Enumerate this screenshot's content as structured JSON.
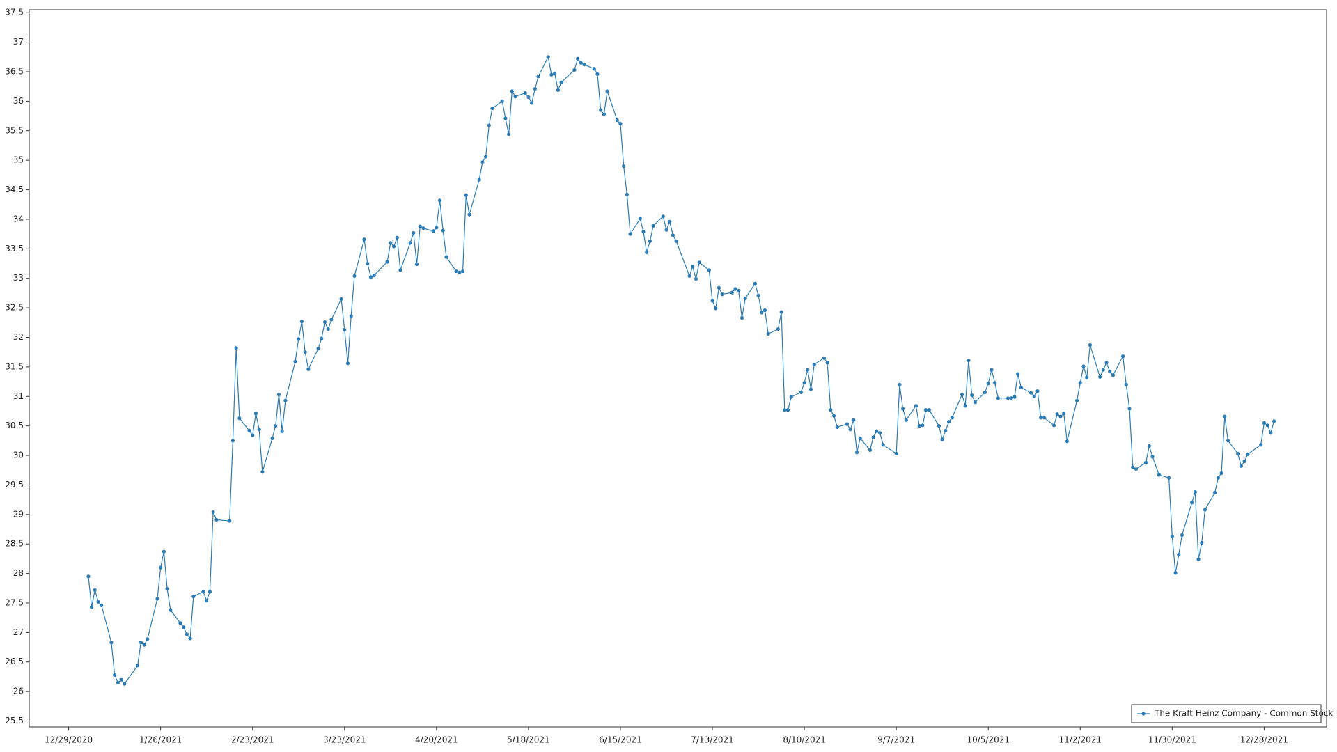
{
  "chart_data": {
    "type": "line",
    "legend": "bottom-right",
    "grid": true,
    "xlim": [
      "12/17/2020",
      "1/16/2022"
    ],
    "xticks": [
      "12/29/2020",
      "1/26/2021",
      "2/23/2021",
      "3/23/2021",
      "4/20/2021",
      "5/18/2021",
      "6/15/2021",
      "7/13/2021",
      "8/10/2021",
      "9/7/2021",
      "10/5/2021",
      "11/2/2021",
      "11/30/2021",
      "12/28/2021"
    ],
    "ylim": [
      25.4,
      37.55
    ],
    "yticks": [
      25.5,
      26,
      26.5,
      27,
      27.5,
      28,
      28.5,
      29,
      29.5,
      30,
      30.5,
      31,
      31.5,
      32,
      32.5,
      33,
      33.5,
      34,
      34.5,
      35,
      35.5,
      36,
      36.5,
      37,
      37.5
    ],
    "x": [
      "1/4/2021",
      "1/5/2021",
      "1/6/2021",
      "1/7/2021",
      "1/8/2021",
      "1/11/2021",
      "1/12/2021",
      "1/13/2021",
      "1/14/2021",
      "1/15/2021",
      "1/19/2021",
      "1/20/2021",
      "1/21/2021",
      "1/22/2021",
      "1/25/2021",
      "1/26/2021",
      "1/27/2021",
      "1/28/2021",
      "1/29/2021",
      "2/1/2021",
      "2/2/2021",
      "2/3/2021",
      "2/4/2021",
      "2/5/2021",
      "2/8/2021",
      "2/9/2021",
      "2/10/2021",
      "2/11/2021",
      "2/12/2021",
      "2/16/2021",
      "2/17/2021",
      "2/18/2021",
      "2/19/2021",
      "2/22/2021",
      "2/23/2021",
      "2/24/2021",
      "2/25/2021",
      "2/26/2021",
      "3/1/2021",
      "3/2/2021",
      "3/3/2021",
      "3/4/2021",
      "3/5/2021",
      "3/8/2021",
      "3/9/2021",
      "3/10/2021",
      "3/11/2021",
      "3/12/2021",
      "3/15/2021",
      "3/16/2021",
      "3/17/2021",
      "3/18/2021",
      "3/19/2021",
      "3/22/2021",
      "3/23/2021",
      "3/24/2021",
      "3/25/2021",
      "3/26/2021",
      "3/29/2021",
      "3/30/2021",
      "3/31/2021",
      "4/1/2021",
      "4/5/2021",
      "4/6/2021",
      "4/7/2021",
      "4/8/2021",
      "4/9/2021",
      "4/12/2021",
      "4/13/2021",
      "4/14/2021",
      "4/15/2021",
      "4/16/2021",
      "4/19/2021",
      "4/20/2021",
      "4/21/2021",
      "4/22/2021",
      "4/23/2021",
      "4/26/2021",
      "4/27/2021",
      "4/28/2021",
      "4/29/2021",
      "4/30/2021",
      "5/3/2021",
      "5/4/2021",
      "5/5/2021",
      "5/6/2021",
      "5/7/2021",
      "5/10/2021",
      "5/11/2021",
      "5/12/2021",
      "5/13/2021",
      "5/14/2021",
      "5/17/2021",
      "5/18/2021",
      "5/19/2021",
      "5/20/2021",
      "5/21/2021",
      "5/24/2021",
      "5/25/2021",
      "5/26/2021",
      "5/27/2021",
      "5/28/2021",
      "6/1/2021",
      "6/2/2021",
      "6/3/2021",
      "6/4/2021",
      "6/7/2021",
      "6/8/2021",
      "6/9/2021",
      "6/10/2021",
      "6/11/2021",
      "6/14/2021",
      "6/15/2021",
      "6/16/2021",
      "6/17/2021",
      "6/18/2021",
      "6/21/2021",
      "6/22/2021",
      "6/23/2021",
      "6/24/2021",
      "6/25/2021",
      "6/28/2021",
      "6/29/2021",
      "6/30/2021",
      "7/1/2021",
      "7/2/2021",
      "7/6/2021",
      "7/7/2021",
      "7/8/2021",
      "7/9/2021",
      "7/12/2021",
      "7/13/2021",
      "7/14/2021",
      "7/15/2021",
      "7/16/2021",
      "7/19/2021",
      "7/20/2021",
      "7/21/2021",
      "7/22/2021",
      "7/23/2021",
      "7/26/2021",
      "7/27/2021",
      "7/28/2021",
      "7/29/2021",
      "7/30/2021",
      "8/2/2021",
      "8/3/2021",
      "8/4/2021",
      "8/5/2021",
      "8/6/2021",
      "8/9/2021",
      "8/10/2021",
      "8/11/2021",
      "8/12/2021",
      "8/13/2021",
      "8/16/2021",
      "8/17/2021",
      "8/18/2021",
      "8/19/2021",
      "8/20/2021",
      "8/23/2021",
      "8/24/2021",
      "8/25/2021",
      "8/26/2021",
      "8/27/2021",
      "8/30/2021",
      "8/31/2021",
      "9/1/2021",
      "9/2/2021",
      "9/3/2021",
      "9/7/2021",
      "9/8/2021",
      "9/9/2021",
      "9/10/2021",
      "9/13/2021",
      "9/14/2021",
      "9/15/2021",
      "9/16/2021",
      "9/17/2021",
      "9/20/2021",
      "9/21/2021",
      "9/22/2021",
      "9/23/2021",
      "9/24/2021",
      "9/27/2021",
      "9/28/2021",
      "9/29/2021",
      "9/30/2021",
      "10/1/2021",
      "10/4/2021",
      "10/5/2021",
      "10/6/2021",
      "10/7/2021",
      "10/8/2021",
      "10/11/2021",
      "10/12/2021",
      "10/13/2021",
      "10/14/2021",
      "10/15/2021",
      "10/18/2021",
      "10/19/2021",
      "10/20/2021",
      "10/21/2021",
      "10/22/2021",
      "10/25/2021",
      "10/26/2021",
      "10/27/2021",
      "10/28/2021",
      "10/29/2021",
      "11/1/2021",
      "11/2/2021",
      "11/3/2021",
      "11/4/2021",
      "11/5/2021",
      "11/8/2021",
      "11/9/2021",
      "11/10/2021",
      "11/11/2021",
      "11/12/2021",
      "11/15/2021",
      "11/16/2021",
      "11/17/2021",
      "11/18/2021",
      "11/19/2021",
      "11/22/2021",
      "11/23/2021",
      "11/24/2021",
      "11/26/2021",
      "11/29/2021",
      "11/30/2021",
      "12/1/2021",
      "12/2/2021",
      "12/3/2021",
      "12/6/2021",
      "12/7/2021",
      "12/8/2021",
      "12/9/2021",
      "12/10/2021",
      "12/13/2021",
      "12/14/2021",
      "12/15/2021",
      "12/16/2021",
      "12/17/2021",
      "12/20/2021",
      "12/21/2021",
      "12/22/2021",
      "12/23/2021",
      "12/27/2021",
      "12/28/2021",
      "12/29/2021",
      "12/30/2021",
      "12/31/2021"
    ],
    "series": [
      {
        "name": "The Kraft Heinz Company - Common Stock",
        "color": "#2b7bb5",
        "values": [
          27.95,
          27.43,
          27.72,
          27.52,
          27.46,
          26.83,
          26.28,
          26.15,
          26.2,
          26.13,
          26.44,
          26.83,
          26.79,
          26.89,
          27.57,
          28.1,
          28.37,
          27.74,
          27.38,
          27.16,
          27.09,
          26.97,
          26.9,
          27.61,
          27.69,
          27.54,
          27.69,
          29.04,
          28.91,
          28.89,
          30.25,
          31.82,
          30.63,
          30.42,
          30.34,
          30.71,
          30.44,
          29.72,
          30.29,
          30.5,
          31.03,
          30.41,
          30.93,
          31.59,
          31.97,
          32.27,
          31.75,
          31.46,
          31.81,
          31.98,
          32.26,
          32.14,
          32.3,
          32.65,
          32.13,
          31.56,
          32.36,
          33.04,
          33.66,
          33.25,
          33.02,
          33.05,
          33.28,
          33.6,
          33.54,
          33.69,
          33.14,
          33.6,
          33.77,
          33.24,
          33.88,
          33.85,
          33.8,
          33.86,
          34.32,
          33.81,
          33.36,
          33.12,
          33.1,
          33.12,
          34.41,
          34.08,
          34.67,
          34.97,
          35.06,
          35.59,
          35.88,
          36.0,
          35.71,
          35.44,
          36.17,
          36.08,
          36.14,
          36.07,
          35.97,
          36.21,
          36.42,
          36.75,
          36.45,
          36.47,
          36.19,
          36.32,
          36.53,
          36.72,
          36.65,
          36.62,
          36.55,
          36.46,
          35.85,
          35.78,
          36.17,
          35.68,
          35.62,
          34.9,
          34.42,
          33.75,
          34.01,
          33.79,
          33.44,
          33.63,
          33.89,
          34.05,
          33.82,
          33.96,
          33.73,
          33.63,
          33.04,
          33.2,
          32.99,
          33.27,
          33.14,
          32.62,
          32.49,
          32.84,
          32.73,
          32.76,
          32.82,
          32.79,
          32.33,
          32.66,
          32.91,
          32.71,
          32.42,
          32.46,
          32.06,
          32.14,
          32.43,
          30.77,
          30.77,
          30.99,
          31.07,
          31.23,
          31.45,
          31.12,
          31.54,
          31.65,
          31.57,
          30.77,
          30.67,
          30.48,
          30.53,
          30.44,
          30.6,
          30.05,
          30.29,
          30.09,
          30.31,
          30.41,
          30.38,
          30.18,
          30.03,
          31.2,
          30.79,
          30.6,
          30.84,
          30.5,
          30.51,
          30.77,
          30.77,
          30.5,
          30.27,
          30.42,
          30.57,
          30.64,
          31.03,
          30.84,
          31.61,
          31.02,
          30.9,
          31.07,
          31.22,
          31.45,
          31.23,
          30.97,
          30.97,
          30.97,
          30.99,
          31.38,
          31.15,
          31.06,
          31.0,
          31.09,
          30.64,
          30.64,
          30.51,
          30.7,
          30.66,
          30.71,
          30.24,
          30.93,
          31.23,
          31.51,
          31.32,
          31.87,
          31.33,
          31.45,
          31.57,
          31.42,
          31.36,
          31.68,
          31.2,
          30.79,
          29.8,
          29.77,
          29.88,
          30.16,
          29.98,
          29.67,
          29.62,
          28.63,
          28.01,
          28.32,
          28.65,
          29.2,
          29.38,
          28.24,
          28.52,
          29.08,
          29.37,
          29.62,
          29.7,
          30.66,
          30.25,
          30.03,
          29.82,
          29.9,
          30.02,
          30.18,
          30.55,
          30.51,
          30.38,
          30.58
        ]
      }
    ]
  }
}
